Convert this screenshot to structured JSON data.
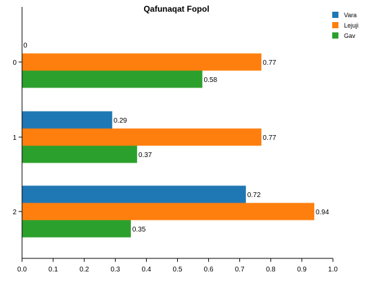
{
  "chart_data": {
    "type": "bar",
    "orientation": "horizontal",
    "title": "Qafunaqat Fopol",
    "categories": [
      "0",
      "1",
      "2"
    ],
    "series": [
      {
        "name": "Vara",
        "color": "#1f77b4",
        "values": [
          0,
          0.29,
          0.72
        ]
      },
      {
        "name": "Lejuji",
        "color": "#ff7f0e",
        "values": [
          0.77,
          0.77,
          0.94
        ]
      },
      {
        "name": "Gav",
        "color": "#2ca02c",
        "values": [
          0.58,
          0.37,
          0.35
        ]
      }
    ],
    "xlim": [
      0,
      1
    ],
    "x_ticks": [
      "0.0",
      "0.1",
      "0.2",
      "0.3",
      "0.4",
      "0.5",
      "0.6",
      "0.7",
      "0.8",
      "0.9",
      "1.0"
    ],
    "grid": false,
    "legend_position": "top-right"
  }
}
